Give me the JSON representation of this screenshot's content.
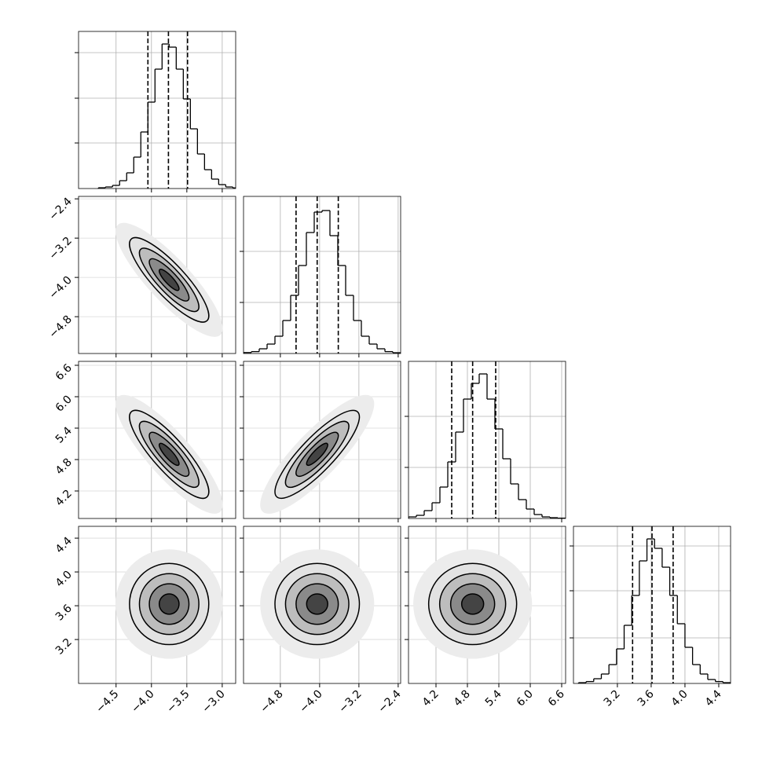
{
  "chart_data": {
    "type": "corner",
    "levels": [
      0.5,
      1,
      1.5,
      2
    ],
    "correlation": [
      [
        -0.85
      ],
      [
        -0.85,
        0.85
      ],
      [
        0,
        0,
        0
      ]
    ],
    "hist_ylim": [
      0,
      1
    ],
    "params": [
      {
        "mean": -3.75,
        "std": 0.28,
        "lim": [
          -5.03,
          -2.81
        ],
        "ticks": [
          {
            "value": -4.5,
            "label": "−4.5"
          },
          {
            "value": -4.0,
            "label": "−4.0"
          },
          {
            "value": -3.5,
            "label": "−3.5"
          },
          {
            "value": -3.0,
            "label": "−3.0"
          }
        ],
        "quantiles": [
          -4.05,
          -3.76,
          -3.49
        ],
        "hist_yticks": [
          0.29,
          0.575,
          0.865
        ],
        "bins": [
          -4.75,
          -4.65,
          -4.55,
          -4.45,
          -4.35,
          -4.25,
          -4.15,
          -4.05,
          -3.95,
          -3.85,
          -3.75,
          -3.65,
          -3.55,
          -3.45,
          -3.35,
          -3.25,
          -3.15,
          -3.05,
          -2.95,
          -2.85,
          -2.75
        ],
        "counts": [
          0.005,
          0.01,
          0.02,
          0.05,
          0.1,
          0.2,
          0.36,
          0.55,
          0.76,
          0.92,
          0.9,
          0.76,
          0.57,
          0.38,
          0.22,
          0.12,
          0.06,
          0.025,
          0.01,
          0.004
        ]
      },
      {
        "mean": -4.05,
        "std": 0.43,
        "lim": [
          -5.55,
          -2.35
        ],
        "ticks": [
          {
            "value": -4.8,
            "label": "−4.8"
          },
          {
            "value": -4.0,
            "label": "−4.0"
          },
          {
            "value": -3.2,
            "label": "−3.2"
          },
          {
            "value": -2.4,
            "label": "−2.4"
          }
        ],
        "quantiles": [
          -4.48,
          -4.05,
          -3.62
        ],
        "hist_yticks": [
          0.325,
          0.65
        ],
        "bins": [
          -5.55,
          -5.39,
          -5.23,
          -5.07,
          -4.91,
          -4.75,
          -4.59,
          -4.43,
          -4.27,
          -4.11,
          -3.95,
          -3.79,
          -3.63,
          -3.47,
          -3.31,
          -3.15,
          -2.99,
          -2.83,
          -2.67,
          -2.51,
          -2.35
        ],
        "counts": [
          0.006,
          0.012,
          0.03,
          0.06,
          0.11,
          0.21,
          0.37,
          0.56,
          0.77,
          0.9,
          0.91,
          0.75,
          0.56,
          0.37,
          0.21,
          0.11,
          0.06,
          0.03,
          0.012,
          0.005
        ]
      },
      {
        "mean": 4.9,
        "std": 0.42,
        "lim": [
          3.675,
          6.675
        ],
        "ticks": [
          {
            "value": 4.2,
            "label": "4.2"
          },
          {
            "value": 4.8,
            "label": "4.8"
          },
          {
            "value": 5.4,
            "label": "5.4"
          },
          {
            "value": 6.0,
            "label": "6.0"
          },
          {
            "value": 6.6,
            "label": "6.6"
          }
        ],
        "quantiles": [
          4.5,
          4.9,
          5.34
        ],
        "hist_yticks": [
          0.325,
          0.65
        ],
        "bins": [
          3.675,
          3.825,
          3.975,
          4.125,
          4.275,
          4.425,
          4.575,
          4.725,
          4.875,
          5.025,
          5.175,
          5.325,
          5.475,
          5.625,
          5.775,
          5.925,
          6.075,
          6.225,
          6.375,
          6.525,
          6.675
        ],
        "counts": [
          0.01,
          0.02,
          0.05,
          0.1,
          0.2,
          0.36,
          0.55,
          0.76,
          0.86,
          0.92,
          0.76,
          0.57,
          0.38,
          0.22,
          0.12,
          0.06,
          0.025,
          0.01,
          0.005,
          0.002
        ]
      },
      {
        "mean": 3.62,
        "std": 0.24,
        "lim": [
          2.68,
          4.54
        ],
        "ticks": [
          {
            "value": 3.2,
            "label": "3.2"
          },
          {
            "value": 3.6,
            "label": "3.6"
          },
          {
            "value": 4.0,
            "label": "4.0"
          },
          {
            "value": 4.4,
            "label": "4.4"
          }
        ],
        "quantiles": [
          3.38,
          3.61,
          3.86
        ],
        "hist_yticks": [
          0.29,
          0.59,
          0.875
        ],
        "bins": [
          2.74,
          2.83,
          2.92,
          3.01,
          3.1,
          3.19,
          3.28,
          3.37,
          3.46,
          3.55,
          3.64,
          3.73,
          3.82,
          3.91,
          4.0,
          4.09,
          4.18,
          4.27,
          4.36,
          4.45,
          4.54
        ],
        "counts": [
          0.005,
          0.012,
          0.03,
          0.06,
          0.12,
          0.22,
          0.37,
          0.56,
          0.78,
          0.92,
          0.86,
          0.74,
          0.56,
          0.38,
          0.23,
          0.12,
          0.06,
          0.025,
          0.012,
          0.005
        ]
      }
    ]
  }
}
